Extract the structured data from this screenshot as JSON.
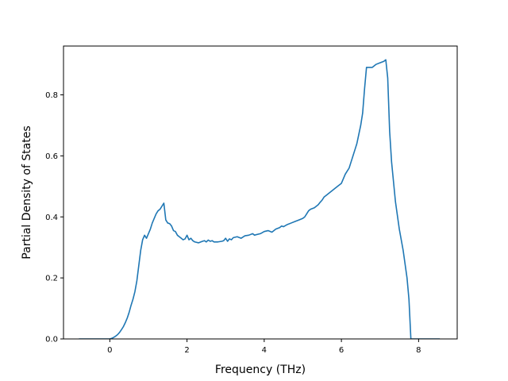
{
  "chart_data": {
    "type": "line",
    "title": "",
    "xlabel": "Frequency (THz)",
    "ylabel": "Partial Density of States",
    "xlim": [
      -1.2,
      9.0
    ],
    "ylim": [
      0.0,
      0.96
    ],
    "xticks": [
      0,
      2,
      4,
      6,
      8
    ],
    "yticks": [
      0.0,
      0.2,
      0.4,
      0.6,
      0.8
    ],
    "xtick_labels": [
      "0",
      "2",
      "4",
      "6",
      "8"
    ],
    "ytick_labels": [
      "0.0",
      "0.2",
      "0.4",
      "0.6",
      "0.8"
    ],
    "grid": false,
    "line_color": "#1f77b4",
    "series": [
      {
        "x": [
          -0.8,
          -0.4,
          0.0,
          0.05,
          0.1,
          0.15,
          0.2,
          0.25,
          0.3,
          0.35,
          0.4,
          0.45,
          0.5,
          0.55,
          0.6,
          0.65,
          0.7,
          0.75,
          0.8,
          0.85,
          0.9,
          0.95,
          1.0,
          1.05,
          1.1,
          1.15,
          1.2,
          1.25,
          1.3,
          1.35,
          1.4,
          1.45,
          1.5,
          1.55,
          1.6,
          1.65,
          1.7,
          1.75,
          1.8,
          1.85,
          1.9,
          1.95,
          2.0,
          2.05,
          2.1,
          2.15,
          2.2,
          2.3,
          2.4,
          2.45,
          2.5,
          2.55,
          2.6,
          2.65,
          2.7,
          2.8,
          2.9,
          2.95,
          3.0,
          3.05,
          3.1,
          3.15,
          3.2,
          3.3,
          3.4,
          3.5,
          3.6,
          3.7,
          3.75,
          3.8,
          3.9,
          4.0,
          4.1,
          4.2,
          4.3,
          4.4,
          4.45,
          4.5,
          4.6,
          4.7,
          4.8,
          4.9,
          5.0,
          5.05,
          5.1,
          5.15,
          5.2,
          5.3,
          5.4,
          5.45,
          5.5,
          5.55,
          5.6,
          5.7,
          5.8,
          5.9,
          6.0,
          6.05,
          6.1,
          6.15,
          6.2,
          6.25,
          6.3,
          6.35,
          6.4,
          6.45,
          6.5,
          6.55,
          6.6,
          6.65,
          6.7,
          6.8,
          6.9,
          7.0,
          7.1,
          7.15,
          7.2,
          7.25,
          7.3,
          7.4,
          7.5,
          7.6,
          7.7,
          7.75,
          7.8,
          8.0,
          8.3,
          8.55
        ],
        "y": [
          0.0,
          0.0,
          0.0,
          0.002,
          0.005,
          0.009,
          0.014,
          0.021,
          0.03,
          0.04,
          0.053,
          0.068,
          0.087,
          0.11,
          0.13,
          0.155,
          0.19,
          0.24,
          0.29,
          0.325,
          0.34,
          0.33,
          0.345,
          0.36,
          0.38,
          0.395,
          0.41,
          0.42,
          0.425,
          0.435,
          0.445,
          0.39,
          0.38,
          0.378,
          0.37,
          0.355,
          0.352,
          0.34,
          0.335,
          0.33,
          0.325,
          0.328,
          0.34,
          0.325,
          0.33,
          0.322,
          0.318,
          0.315,
          0.32,
          0.322,
          0.318,
          0.324,
          0.32,
          0.322,
          0.318,
          0.318,
          0.32,
          0.322,
          0.33,
          0.32,
          0.328,
          0.325,
          0.332,
          0.335,
          0.33,
          0.338,
          0.34,
          0.345,
          0.34,
          0.342,
          0.345,
          0.352,
          0.355,
          0.35,
          0.36,
          0.365,
          0.37,
          0.368,
          0.375,
          0.38,
          0.385,
          0.39,
          0.395,
          0.4,
          0.41,
          0.42,
          0.425,
          0.43,
          0.44,
          0.448,
          0.455,
          0.465,
          0.47,
          0.48,
          0.49,
          0.5,
          0.51,
          0.525,
          0.54,
          0.55,
          0.56,
          0.58,
          0.6,
          0.62,
          0.64,
          0.67,
          0.7,
          0.74,
          0.82,
          0.89,
          0.89,
          0.89,
          0.9,
          0.905,
          0.91,
          0.915,
          0.855,
          0.68,
          0.58,
          0.45,
          0.36,
          0.29,
          0.2,
          0.13,
          0.0,
          0.0,
          0.0,
          0.0
        ]
      }
    ]
  }
}
